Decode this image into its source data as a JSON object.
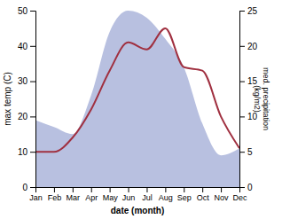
{
  "chart_data": {
    "type": "line",
    "xlabel": "date (month)",
    "ylabel": "max temp (C)",
    "y2label": "med. precipitation\n(kg/m2)",
    "categories": [
      "Jan",
      "Feb",
      "Mar",
      "Apr",
      "May",
      "Jun",
      "Jul",
      "Aug",
      "Sep",
      "Oct",
      "Nov",
      "Dec"
    ],
    "series": [
      {
        "type": "area",
        "color": "#b8c0e0",
        "axis": "y2",
        "values": [
          9.5,
          8.5,
          7.5,
          13,
          22,
          25,
          24,
          21,
          17,
          9,
          4.5,
          5.5
        ]
      },
      {
        "type": "line",
        "color": "#a03040",
        "values": [
          10,
          10,
          14,
          22,
          33,
          41,
          39,
          45,
          34,
          33,
          20,
          11
        ]
      }
    ],
    "ylim": [
      0,
      50
    ],
    "yticks": [
      0,
      10,
      20,
      30,
      40,
      50
    ],
    "y2lim": [
      0,
      25
    ],
    "y2ticks": [
      0,
      5,
      10,
      15,
      20,
      25
    ],
    "grid": false
  }
}
